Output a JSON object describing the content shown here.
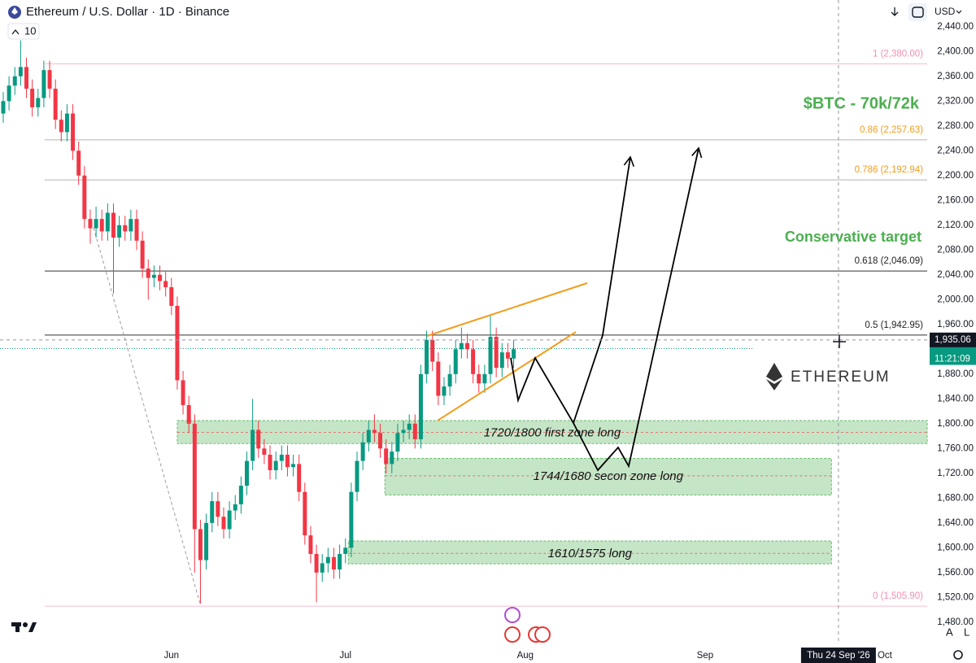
{
  "chart_data": {
    "type": "candlestick",
    "title": "Ethereum / U.S. Dollar · 1D · Binance",
    "indicator": "10",
    "currency": "USD",
    "xlim": [
      -0.56,
      159.3
    ],
    "ylim": [
      1447,
      2483
    ],
    "xticks": [
      {
        "value": 29,
        "label": "Jun"
      },
      {
        "value": 59,
        "label": "Jul"
      },
      {
        "value": 90,
        "label": "Aug"
      },
      {
        "value": 121,
        "label": "Sep"
      },
      {
        "value": 152,
        "label": "Oct"
      }
    ],
    "yticks": [
      {
        "value": 2440,
        "label": "2,440.00"
      },
      {
        "value": 2400,
        "label": "2,400.00"
      },
      {
        "value": 2360,
        "label": "2,360.00"
      },
      {
        "value": 2320,
        "label": "2,320.00"
      },
      {
        "value": 2280,
        "label": "2,280.00"
      },
      {
        "value": 2240,
        "label": "2,240.00"
      },
      {
        "value": 2200,
        "label": "2,200.00"
      },
      {
        "value": 2160,
        "label": "2,160.00"
      },
      {
        "value": 2120,
        "label": "2,120.00"
      },
      {
        "value": 2080,
        "label": "2,080.00"
      },
      {
        "value": 2040,
        "label": "2,040.00"
      },
      {
        "value": 2000,
        "label": "2,000.00"
      },
      {
        "value": 1960,
        "label": "1,960.00"
      },
      {
        "value": 1920,
        "label": "1,920.00"
      },
      {
        "value": 1880,
        "label": "1,880.00"
      },
      {
        "value": 1840,
        "label": "1,840.00"
      },
      {
        "value": 1800,
        "label": "1,800.00"
      },
      {
        "value": 1760,
        "label": "1,760.00"
      },
      {
        "value": 1720,
        "label": "1,720.00"
      },
      {
        "value": 1680,
        "label": "1,680.00"
      },
      {
        "value": 1640,
        "label": "1,640.00"
      },
      {
        "value": 1600,
        "label": "1,600.00"
      },
      {
        "value": 1560,
        "label": "1,560.00"
      },
      {
        "value": 1520,
        "label": "1,520.00"
      },
      {
        "value": 1480,
        "label": "1,480.00"
      }
    ],
    "grid": false,
    "up_color": "#089981",
    "down_color": "#f23645",
    "series": {
      "open": [
        2300,
        2320,
        2345,
        2360,
        2375,
        2340,
        2310,
        2325,
        2370,
        2340,
        2290,
        2270,
        2300,
        2240,
        2200,
        2130,
        2115,
        2130,
        2110,
        2140,
        2100,
        2120,
        2110,
        2130,
        2095,
        2050,
        2035,
        2040,
        2030,
        2020,
        1990,
        1870,
        1830,
        1800,
        1630,
        1580,
        1640,
        1675,
        1650,
        1630,
        1660,
        1670,
        1700,
        1740,
        1790,
        1760,
        1750,
        1725,
        1740,
        1750,
        1730,
        1735,
        1690,
        1620,
        1590,
        1560,
        1575,
        1585,
        1565,
        1590,
        1600,
        1690,
        1740,
        1770,
        1790,
        1785,
        1760,
        1735,
        1755,
        1785,
        1790,
        1800,
        1775,
        1880,
        1935,
        1900,
        1845,
        1860,
        1880,
        1920,
        1930,
        1920,
        1880,
        1865,
        1880,
        1940,
        1890,
        1915,
        1905
      ],
      "high": [
        2335,
        2360,
        2375,
        2418,
        2390,
        2355,
        2340,
        2385,
        2385,
        2355,
        2305,
        2315,
        2315,
        2255,
        2215,
        2145,
        2150,
        2145,
        2155,
        2155,
        2135,
        2135,
        2145,
        2145,
        2110,
        2065,
        2055,
        2055,
        2045,
        2035,
        2005,
        1885,
        1845,
        1815,
        1645,
        1655,
        1690,
        1690,
        1665,
        1675,
        1685,
        1715,
        1755,
        1840,
        1805,
        1775,
        1765,
        1755,
        1765,
        1765,
        1750,
        1750,
        1705,
        1635,
        1605,
        1590,
        1600,
        1600,
        1605,
        1615,
        1705,
        1755,
        1785,
        1805,
        1815,
        1800,
        1775,
        1770,
        1800,
        1805,
        1815,
        1815,
        1895,
        1950,
        1950,
        1915,
        1875,
        1895,
        1935,
        1955,
        1945,
        1935,
        1895,
        1895,
        1975,
        1955,
        1930,
        1930,
        1935
      ],
      "low": [
        2285,
        2305,
        2330,
        2345,
        2325,
        2295,
        2295,
        2310,
        2325,
        2275,
        2255,
        2255,
        2225,
        2185,
        2115,
        2090,
        2100,
        2095,
        2095,
        2010,
        2085,
        2095,
        2095,
        2080,
        2035,
        2000,
        2020,
        2015,
        2005,
        1975,
        1855,
        1815,
        1785,
        1560,
        1510,
        1565,
        1625,
        1635,
        1615,
        1615,
        1645,
        1655,
        1685,
        1725,
        1745,
        1735,
        1710,
        1710,
        1725,
        1715,
        1715,
        1675,
        1605,
        1575,
        1512,
        1545,
        1560,
        1550,
        1550,
        1575,
        1585,
        1675,
        1725,
        1755,
        1770,
        1745,
        1720,
        1720,
        1740,
        1770,
        1775,
        1760,
        1760,
        1865,
        1885,
        1830,
        1830,
        1845,
        1865,
        1905,
        1905,
        1865,
        1850,
        1850,
        1865,
        1875,
        1875,
        1890,
        1890
      ],
      "close": [
        2320,
        2345,
        2360,
        2375,
        2340,
        2310,
        2325,
        2370,
        2340,
        2290,
        2270,
        2300,
        2240,
        2200,
        2130,
        2115,
        2130,
        2110,
        2140,
        2100,
        2120,
        2110,
        2130,
        2095,
        2050,
        2035,
        2040,
        2030,
        2020,
        1990,
        1870,
        1830,
        1800,
        1630,
        1580,
        1640,
        1675,
        1650,
        1630,
        1660,
        1670,
        1700,
        1740,
        1790,
        1760,
        1750,
        1725,
        1740,
        1750,
        1730,
        1735,
        1690,
        1620,
        1590,
        1560,
        1575,
        1585,
        1565,
        1590,
        1600,
        1690,
        1740,
        1770,
        1790,
        1785,
        1760,
        1735,
        1755,
        1785,
        1790,
        1800,
        1775,
        1880,
        1935,
        1900,
        1845,
        1860,
        1880,
        1920,
        1930,
        1920,
        1880,
        1865,
        1880,
        1940,
        1890,
        1915,
        1905,
        1920
      ]
    },
    "fib_levels": [
      {
        "label": "1 (2,380.00)",
        "value": 2380,
        "color": "#f8bbd0",
        "label_color": "#f48fb1"
      },
      {
        "label": "0.86 (2,257.63)",
        "value": 2257.63,
        "color": "#b0b0b0",
        "label_color": "#f29d1c"
      },
      {
        "label": "0.786 (2,192.94)",
        "value": 2192.94,
        "color": "#b0b0b0",
        "label_color": "#f29d1c"
      },
      {
        "label": "0.618 (2,046.09)",
        "value": 2046.09,
        "color": "#333333",
        "label_color": "#222222"
      },
      {
        "label": "0.5 (1,942.95)",
        "value": 1942.95,
        "color": "#333333",
        "label_color": "#222222"
      },
      {
        "label": "0 (1,505.90)",
        "value": 1505.9,
        "color": "#f8bbd0",
        "label_color": "#f48fb1"
      }
    ],
    "zones": [
      {
        "label": "1720/1800 first zone long",
        "top": 1805,
        "bottom": 1768,
        "mid": 1786,
        "x": [
          30,
          159.3
        ]
      },
      {
        "label": "1744/1680 secon zone long",
        "top": 1744,
        "bottom": 1685,
        "mid": 1716,
        "x": [
          65.8,
          142.8
        ]
      },
      {
        "label": "1610/1575 long",
        "top": 1611,
        "bottom": 1574,
        "mid": 1591,
        "x": [
          59.5,
          142.8
        ]
      }
    ],
    "annotations": [
      {
        "text": "$BTC - 70k/72k",
        "color": "#4caf50"
      },
      {
        "text": "Conservative target",
        "color": "#4caf50"
      }
    ],
    "logo_text": "ETHEREUM",
    "crosshair": {
      "value": 1935.06,
      "label": "1,935.06",
      "x": 144,
      "date_label": "Thu 24 Sep '26"
    },
    "last_price": {
      "value": 1921,
      "countdown": "11:21:09",
      "color": "#089981"
    }
  }
}
